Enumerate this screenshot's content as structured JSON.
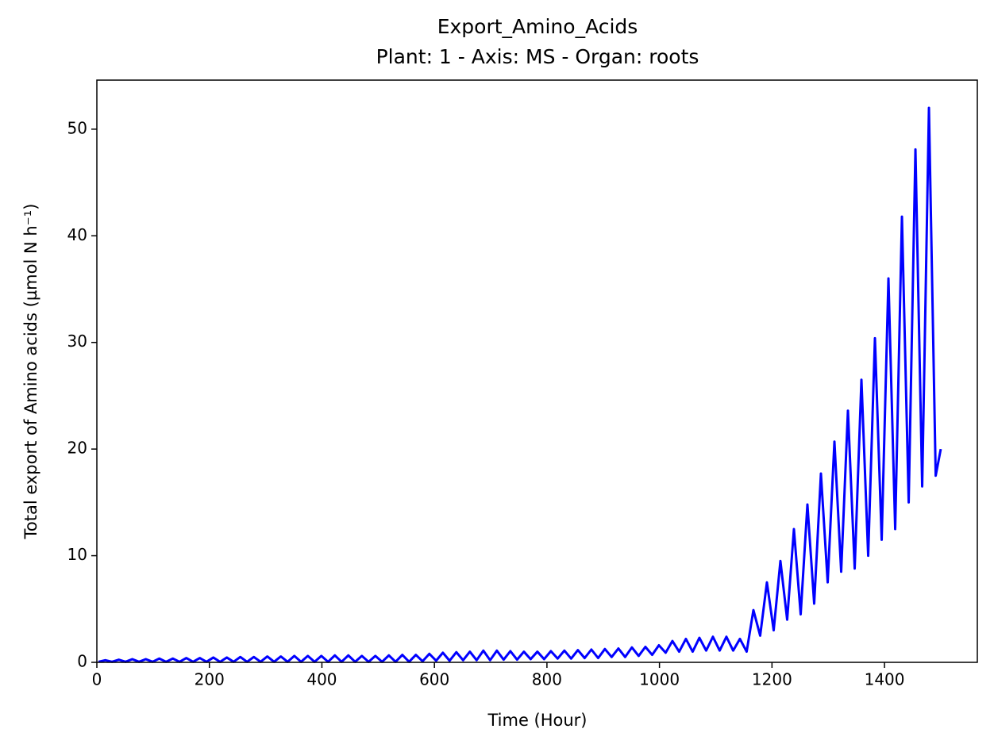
{
  "chart_data": {
    "type": "line",
    "title": "Export_Amino_Acids",
    "subtitle": "Plant: 1 - Axis: MS - Organ: roots",
    "x_label": "Time (Hour)",
    "y_label": "Total export of Amino acids (µmol N h⁻¹)",
    "xlim": [
      0,
      1565
    ],
    "ylim": [
      0,
      54.6
    ],
    "xticks": [
      0,
      200,
      400,
      600,
      800,
      1000,
      1200,
      1400
    ],
    "yticks": [
      0,
      10,
      20,
      30,
      40,
      50
    ],
    "grid": false,
    "x": [
      3,
      15,
      27,
      39,
      51,
      63,
      75,
      87,
      99,
      111,
      123,
      135,
      147,
      159,
      171,
      183,
      195,
      207,
      219,
      231,
      243,
      255,
      267,
      279,
      291,
      303,
      315,
      327,
      339,
      351,
      363,
      375,
      387,
      399,
      411,
      423,
      435,
      447,
      459,
      471,
      483,
      495,
      507,
      519,
      531,
      543,
      555,
      567,
      579,
      591,
      603,
      615,
      627,
      639,
      651,
      663,
      675,
      687,
      699,
      711,
      723,
      735,
      747,
      759,
      771,
      783,
      795,
      807,
      819,
      831,
      843,
      855,
      867,
      879,
      891,
      903,
      915,
      927,
      939,
      951,
      963,
      975,
      987,
      999,
      1011,
      1023,
      1035,
      1047,
      1059,
      1071,
      1083,
      1095,
      1107,
      1119,
      1131,
      1143,
      1155,
      1167,
      1179,
      1191,
      1203,
      1215,
      1227,
      1239,
      1251,
      1263,
      1275,
      1287,
      1299,
      1311,
      1323,
      1335,
      1347,
      1359,
      1371,
      1383,
      1395,
      1407,
      1419,
      1431,
      1443,
      1455,
      1467,
      1479,
      1491,
      1500
    ],
    "series": [
      {
        "name": "Export_Amino_Acids",
        "color": "#0000ff",
        "values": [
          0.05,
          0.2,
          0.05,
          0.25,
          0.05,
          0.3,
          0.05,
          0.3,
          0.05,
          0.35,
          0.05,
          0.35,
          0.05,
          0.4,
          0.05,
          0.4,
          0.05,
          0.45,
          0.05,
          0.45,
          0.05,
          0.5,
          0.05,
          0.5,
          0.05,
          0.55,
          0.05,
          0.55,
          0.05,
          0.6,
          0.05,
          0.6,
          0.05,
          0.6,
          0.05,
          0.65,
          0.05,
          0.65,
          0.05,
          0.6,
          0.05,
          0.6,
          0.05,
          0.65,
          0.05,
          0.7,
          0.05,
          0.7,
          0.1,
          0.8,
          0.15,
          0.9,
          0.15,
          0.95,
          0.2,
          1.0,
          0.2,
          1.1,
          0.2,
          1.1,
          0.25,
          1.05,
          0.25,
          1.0,
          0.3,
          1.0,
          0.3,
          1.05,
          0.35,
          1.1,
          0.35,
          1.15,
          0.4,
          1.2,
          0.4,
          1.25,
          0.5,
          1.3,
          0.5,
          1.4,
          0.6,
          1.45,
          0.7,
          1.6,
          0.9,
          2.0,
          1.0,
          2.2,
          1.0,
          2.3,
          1.1,
          2.4,
          1.1,
          2.4,
          1.1,
          2.2,
          1.0,
          4.9,
          2.5,
          7.5,
          3.0,
          9.5,
          4.0,
          12.5,
          4.5,
          14.8,
          5.5,
          17.7,
          7.5,
          20.7,
          8.5,
          23.6,
          8.8,
          26.5,
          10,
          30.4,
          11.5,
          36,
          12.5,
          41.8,
          15,
          48.1,
          16.5,
          52,
          17.5,
          20
        ]
      }
    ]
  }
}
